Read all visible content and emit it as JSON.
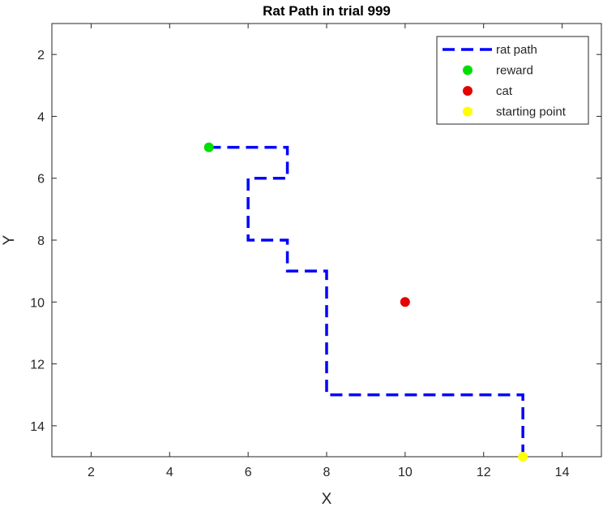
{
  "chart_data": {
    "type": "line",
    "title": "Rat Path in trial 999",
    "xlabel": "X",
    "ylabel": "Y",
    "xlim": [
      1,
      15
    ],
    "ylim": [
      1,
      15
    ],
    "y_reversed": true,
    "xticks": [
      2,
      4,
      6,
      8,
      10,
      12,
      14
    ],
    "yticks": [
      2,
      4,
      6,
      8,
      10,
      12,
      14
    ],
    "grid": false,
    "legend_position": "top-right",
    "series": [
      {
        "name": "rat path",
        "kind": "line",
        "style": "dashed",
        "color": "#0000ff",
        "x": [
          13,
          13,
          8,
          8,
          7,
          7,
          6,
          6,
          7,
          7,
          5
        ],
        "y": [
          15,
          13,
          13,
          9,
          9,
          8,
          8,
          6,
          6,
          5,
          5
        ]
      },
      {
        "name": "reward",
        "kind": "point",
        "color": "#00e000",
        "x": [
          5
        ],
        "y": [
          5
        ]
      },
      {
        "name": "cat",
        "kind": "point",
        "color": "#e60000",
        "x": [
          10
        ],
        "y": [
          10
        ]
      },
      {
        "name": "starting point",
        "kind": "point",
        "color": "#ffff00",
        "x": [
          13
        ],
        "y": [
          15
        ]
      }
    ]
  }
}
